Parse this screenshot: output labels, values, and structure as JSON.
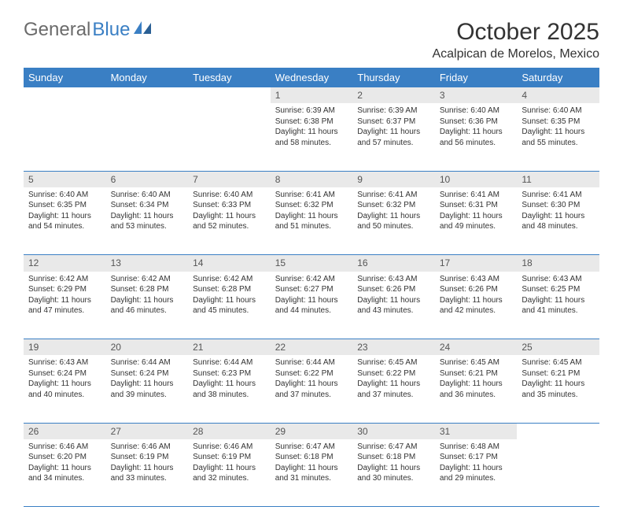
{
  "brand": {
    "part1": "General",
    "part2": "Blue"
  },
  "title": "October 2025",
  "location": "Acalpican de Morelos, Mexico",
  "day_headers": [
    "Sunday",
    "Monday",
    "Tuesday",
    "Wednesday",
    "Thursday",
    "Friday",
    "Saturday"
  ],
  "colors": {
    "header_bg": "#3a7fc4",
    "header_text": "#ffffff",
    "daynum_bg": "#e9e9e9",
    "border": "#3a7fc4",
    "logo_gray": "#6b6b6b",
    "logo_blue": "#3a7fc4"
  },
  "weeks": [
    [
      {
        "n": "",
        "sunrise": "",
        "sunset": "",
        "daylight": ""
      },
      {
        "n": "",
        "sunrise": "",
        "sunset": "",
        "daylight": ""
      },
      {
        "n": "",
        "sunrise": "",
        "sunset": "",
        "daylight": ""
      },
      {
        "n": "1",
        "sunrise": "Sunrise: 6:39 AM",
        "sunset": "Sunset: 6:38 PM",
        "daylight": "Daylight: 11 hours and 58 minutes."
      },
      {
        "n": "2",
        "sunrise": "Sunrise: 6:39 AM",
        "sunset": "Sunset: 6:37 PM",
        "daylight": "Daylight: 11 hours and 57 minutes."
      },
      {
        "n": "3",
        "sunrise": "Sunrise: 6:40 AM",
        "sunset": "Sunset: 6:36 PM",
        "daylight": "Daylight: 11 hours and 56 minutes."
      },
      {
        "n": "4",
        "sunrise": "Sunrise: 6:40 AM",
        "sunset": "Sunset: 6:35 PM",
        "daylight": "Daylight: 11 hours and 55 minutes."
      }
    ],
    [
      {
        "n": "5",
        "sunrise": "Sunrise: 6:40 AM",
        "sunset": "Sunset: 6:35 PM",
        "daylight": "Daylight: 11 hours and 54 minutes."
      },
      {
        "n": "6",
        "sunrise": "Sunrise: 6:40 AM",
        "sunset": "Sunset: 6:34 PM",
        "daylight": "Daylight: 11 hours and 53 minutes."
      },
      {
        "n": "7",
        "sunrise": "Sunrise: 6:40 AM",
        "sunset": "Sunset: 6:33 PM",
        "daylight": "Daylight: 11 hours and 52 minutes."
      },
      {
        "n": "8",
        "sunrise": "Sunrise: 6:41 AM",
        "sunset": "Sunset: 6:32 PM",
        "daylight": "Daylight: 11 hours and 51 minutes."
      },
      {
        "n": "9",
        "sunrise": "Sunrise: 6:41 AM",
        "sunset": "Sunset: 6:32 PM",
        "daylight": "Daylight: 11 hours and 50 minutes."
      },
      {
        "n": "10",
        "sunrise": "Sunrise: 6:41 AM",
        "sunset": "Sunset: 6:31 PM",
        "daylight": "Daylight: 11 hours and 49 minutes."
      },
      {
        "n": "11",
        "sunrise": "Sunrise: 6:41 AM",
        "sunset": "Sunset: 6:30 PM",
        "daylight": "Daylight: 11 hours and 48 minutes."
      }
    ],
    [
      {
        "n": "12",
        "sunrise": "Sunrise: 6:42 AM",
        "sunset": "Sunset: 6:29 PM",
        "daylight": "Daylight: 11 hours and 47 minutes."
      },
      {
        "n": "13",
        "sunrise": "Sunrise: 6:42 AM",
        "sunset": "Sunset: 6:28 PM",
        "daylight": "Daylight: 11 hours and 46 minutes."
      },
      {
        "n": "14",
        "sunrise": "Sunrise: 6:42 AM",
        "sunset": "Sunset: 6:28 PM",
        "daylight": "Daylight: 11 hours and 45 minutes."
      },
      {
        "n": "15",
        "sunrise": "Sunrise: 6:42 AM",
        "sunset": "Sunset: 6:27 PM",
        "daylight": "Daylight: 11 hours and 44 minutes."
      },
      {
        "n": "16",
        "sunrise": "Sunrise: 6:43 AM",
        "sunset": "Sunset: 6:26 PM",
        "daylight": "Daylight: 11 hours and 43 minutes."
      },
      {
        "n": "17",
        "sunrise": "Sunrise: 6:43 AM",
        "sunset": "Sunset: 6:26 PM",
        "daylight": "Daylight: 11 hours and 42 minutes."
      },
      {
        "n": "18",
        "sunrise": "Sunrise: 6:43 AM",
        "sunset": "Sunset: 6:25 PM",
        "daylight": "Daylight: 11 hours and 41 minutes."
      }
    ],
    [
      {
        "n": "19",
        "sunrise": "Sunrise: 6:43 AM",
        "sunset": "Sunset: 6:24 PM",
        "daylight": "Daylight: 11 hours and 40 minutes."
      },
      {
        "n": "20",
        "sunrise": "Sunrise: 6:44 AM",
        "sunset": "Sunset: 6:24 PM",
        "daylight": "Daylight: 11 hours and 39 minutes."
      },
      {
        "n": "21",
        "sunrise": "Sunrise: 6:44 AM",
        "sunset": "Sunset: 6:23 PM",
        "daylight": "Daylight: 11 hours and 38 minutes."
      },
      {
        "n": "22",
        "sunrise": "Sunrise: 6:44 AM",
        "sunset": "Sunset: 6:22 PM",
        "daylight": "Daylight: 11 hours and 37 minutes."
      },
      {
        "n": "23",
        "sunrise": "Sunrise: 6:45 AM",
        "sunset": "Sunset: 6:22 PM",
        "daylight": "Daylight: 11 hours and 37 minutes."
      },
      {
        "n": "24",
        "sunrise": "Sunrise: 6:45 AM",
        "sunset": "Sunset: 6:21 PM",
        "daylight": "Daylight: 11 hours and 36 minutes."
      },
      {
        "n": "25",
        "sunrise": "Sunrise: 6:45 AM",
        "sunset": "Sunset: 6:21 PM",
        "daylight": "Daylight: 11 hours and 35 minutes."
      }
    ],
    [
      {
        "n": "26",
        "sunrise": "Sunrise: 6:46 AM",
        "sunset": "Sunset: 6:20 PM",
        "daylight": "Daylight: 11 hours and 34 minutes."
      },
      {
        "n": "27",
        "sunrise": "Sunrise: 6:46 AM",
        "sunset": "Sunset: 6:19 PM",
        "daylight": "Daylight: 11 hours and 33 minutes."
      },
      {
        "n": "28",
        "sunrise": "Sunrise: 6:46 AM",
        "sunset": "Sunset: 6:19 PM",
        "daylight": "Daylight: 11 hours and 32 minutes."
      },
      {
        "n": "29",
        "sunrise": "Sunrise: 6:47 AM",
        "sunset": "Sunset: 6:18 PM",
        "daylight": "Daylight: 11 hours and 31 minutes."
      },
      {
        "n": "30",
        "sunrise": "Sunrise: 6:47 AM",
        "sunset": "Sunset: 6:18 PM",
        "daylight": "Daylight: 11 hours and 30 minutes."
      },
      {
        "n": "31",
        "sunrise": "Sunrise: 6:48 AM",
        "sunset": "Sunset: 6:17 PM",
        "daylight": "Daylight: 11 hours and 29 minutes."
      },
      {
        "n": "",
        "sunrise": "",
        "sunset": "",
        "daylight": ""
      }
    ]
  ]
}
